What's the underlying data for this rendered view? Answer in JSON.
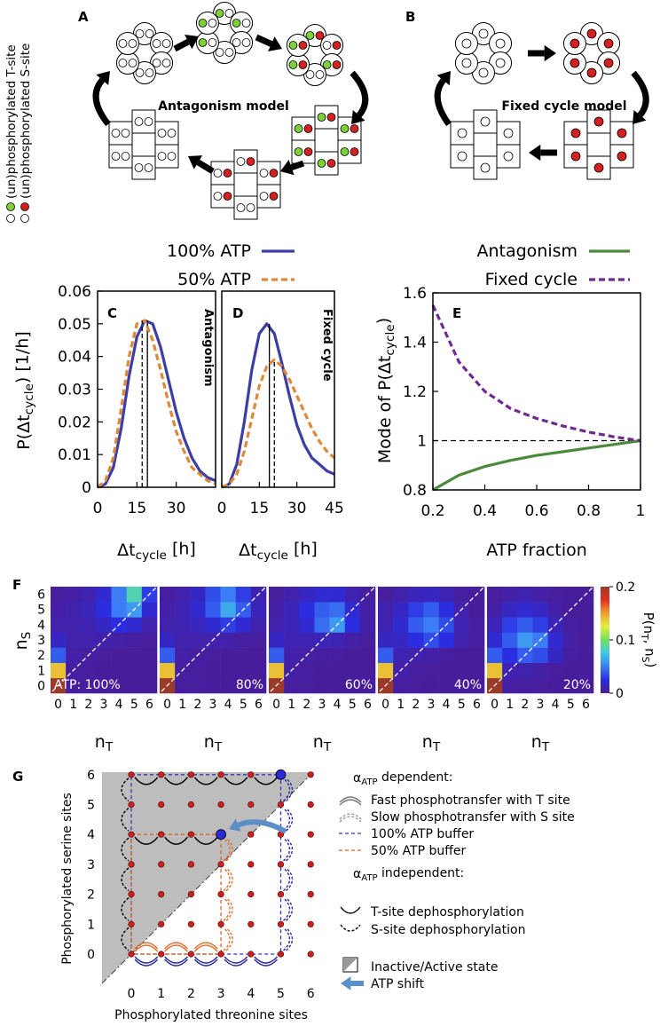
{
  "panel_a": {
    "label": "A",
    "title": "Antagonism model"
  },
  "panel_b": {
    "label": "B",
    "title": "Fixed cycle model"
  },
  "site_legend": [
    "(un)phosphorylated T-site",
    "(un)phosphorylated S-site"
  ],
  "chart_data": [
    {
      "type": "line",
      "panel": "C",
      "annotation": "Antagonism",
      "x": [
        0,
        3,
        6,
        9,
        12,
        15,
        18,
        21,
        24,
        27,
        30,
        33,
        36,
        39,
        42,
        45
      ],
      "xlim": [
        0,
        45
      ],
      "xticks": [
        0,
        15,
        30
      ],
      "ylim": [
        0,
        0.06
      ],
      "yticks": [
        0,
        0.01,
        0.02,
        0.03,
        0.04,
        0.05,
        0.06
      ],
      "x_label": [
        "Δt",
        "cycle",
        " [h]"
      ],
      "y_label": [
        "P(Δt",
        "cycle",
        ") [1/h]"
      ],
      "series": [
        {
          "name": "100% ATP",
          "color": "#3d3da6",
          "dash": false,
          "mode": 19,
          "values": [
            0,
            0.001,
            0.006,
            0.018,
            0.034,
            0.046,
            0.051,
            0.05,
            0.043,
            0.033,
            0.023,
            0.015,
            0.009,
            0.005,
            0.003,
            0.002
          ]
        },
        {
          "name": "50% ATP",
          "color": "#e0883a",
          "dash": true,
          "mode": 17,
          "values": [
            0,
            0.002,
            0.009,
            0.024,
            0.04,
            0.05,
            0.051,
            0.045,
            0.036,
            0.026,
            0.017,
            0.011,
            0.006,
            0.004,
            0.002,
            0.001
          ]
        }
      ]
    },
    {
      "type": "line",
      "panel": "D",
      "annotation": "Fixed cycle",
      "x": [
        0,
        3,
        6,
        9,
        12,
        15,
        18,
        21,
        24,
        27,
        30,
        33,
        36,
        39,
        42,
        45
      ],
      "xlim": [
        0,
        45
      ],
      "xticks": [
        0,
        15,
        30,
        45
      ],
      "ylim": [
        0,
        0.06
      ],
      "x_label": [
        "Δt",
        "cycle",
        " [h]"
      ],
      "series": [
        {
          "color": "#3d3da6",
          "dash": false,
          "mode": 19,
          "values": [
            0,
            0.001,
            0.007,
            0.02,
            0.036,
            0.047,
            0.05,
            0.047,
            0.038,
            0.028,
            0.019,
            0.013,
            0.009,
            0.007,
            0.005,
            0.004
          ]
        },
        {
          "color": "#e0883a",
          "dash": true,
          "mode": 21,
          "values": [
            0,
            0.001,
            0.004,
            0.011,
            0.021,
            0.031,
            0.037,
            0.039,
            0.037,
            0.033,
            0.028,
            0.023,
            0.018,
            0.014,
            0.011,
            0.009
          ]
        }
      ]
    },
    {
      "type": "line",
      "panel": "E",
      "x": [
        0.2,
        0.3,
        0.4,
        0.5,
        0.6,
        0.7,
        0.8,
        0.9,
        1
      ],
      "xlim": [
        0.2,
        1
      ],
      "xticks": [
        0.2,
        0.4,
        0.6,
        0.8,
        1
      ],
      "ylim": [
        0.8,
        1.6
      ],
      "yticks": [
        0.8,
        1,
        1.2,
        1.4,
        1.6
      ],
      "reference_line": 1,
      "x_label": "ATP fraction",
      "y_label": [
        "Mode of P(Δt",
        "cycle",
        ")"
      ],
      "series": [
        {
          "name": "Antagonism",
          "color": "#4a8a3a",
          "dash": false,
          "values": [
            0.8,
            0.86,
            0.895,
            0.92,
            0.94,
            0.955,
            0.97,
            0.985,
            1
          ]
        },
        {
          "name": "Fixed cycle",
          "color": "#6e2a8e",
          "dash": true,
          "values": [
            1.55,
            1.32,
            1.2,
            1.13,
            1.09,
            1.06,
            1.035,
            1.015,
            1
          ]
        }
      ]
    },
    {
      "type": "heatmap",
      "panel": "F",
      "xticks": [
        0,
        1,
        2,
        3,
        4,
        5,
        6
      ],
      "yticks": [
        0,
        1,
        2,
        3,
        4,
        5,
        6
      ],
      "x_label": [
        "n",
        "T"
      ],
      "y_label": [
        "n",
        "S"
      ],
      "colormap": [
        "#4b1c95",
        "#2a2ee0",
        "#3c7cf5",
        "#40c8e8",
        "#70e060",
        "#e0f040",
        "#f0a030",
        "#e03020",
        "#9a3a2a"
      ],
      "colorbar": {
        "lim": [
          0,
          0.2
        ],
        "ticks": [
          0,
          0.1,
          0.2
        ],
        "label": [
          "P(n",
          "T",
          ", n",
          "S",
          ")"
        ]
      },
      "panels": [
        {
          "label": "ATP: 100%",
          "values": [
            [
              0.2,
              0.004,
              0.003,
              0.002,
              0.002,
              0.002,
              0.002
            ],
            [
              0.14,
              0.004,
              0.003,
              0.002,
              0.002,
              0.002,
              0.002
            ],
            [
              0.04,
              0.006,
              0.004,
              0.003,
              0.002,
              0.002,
              0.002
            ],
            [
              0.015,
              0.008,
              0.008,
              0.007,
              0.005,
              0.004,
              0.003
            ],
            [
              0.008,
              0.008,
              0.01,
              0.015,
              0.025,
              0.02,
              0.008
            ],
            [
              0.006,
              0.008,
              0.012,
              0.025,
              0.05,
              0.06,
              0.02
            ],
            [
              0.004,
              0.006,
              0.01,
              0.02,
              0.05,
              0.085,
              0.03
            ]
          ]
        },
        {
          "label": "80%",
          "values": [
            [
              0.2,
              0.004,
              0.003,
              0.002,
              0.002,
              0.002,
              0.002
            ],
            [
              0.14,
              0.004,
              0.003,
              0.002,
              0.002,
              0.002,
              0.002
            ],
            [
              0.04,
              0.006,
              0.004,
              0.003,
              0.002,
              0.002,
              0.002
            ],
            [
              0.015,
              0.008,
              0.008,
              0.008,
              0.006,
              0.004,
              0.003
            ],
            [
              0.008,
              0.01,
              0.014,
              0.02,
              0.03,
              0.02,
              0.008
            ],
            [
              0.006,
              0.01,
              0.02,
              0.04,
              0.065,
              0.04,
              0.012
            ],
            [
              0.004,
              0.008,
              0.015,
              0.035,
              0.05,
              0.03,
              0.01
            ]
          ]
        },
        {
          "label": "60%",
          "values": [
            [
              0.2,
              0.004,
              0.003,
              0.002,
              0.002,
              0.002,
              0.002
            ],
            [
              0.14,
              0.005,
              0.003,
              0.002,
              0.002,
              0.002,
              0.002
            ],
            [
              0.04,
              0.007,
              0.005,
              0.004,
              0.003,
              0.002,
              0.002
            ],
            [
              0.015,
              0.01,
              0.01,
              0.012,
              0.01,
              0.005,
              0.003
            ],
            [
              0.008,
              0.012,
              0.02,
              0.045,
              0.06,
              0.025,
              0.006
            ],
            [
              0.006,
              0.012,
              0.025,
              0.04,
              0.045,
              0.02,
              0.005
            ],
            [
              0.004,
              0.008,
              0.015,
              0.02,
              0.02,
              0.01,
              0.003
            ]
          ]
        },
        {
          "label": "40%",
          "values": [
            [
              0.2,
              0.004,
              0.003,
              0.002,
              0.002,
              0.002,
              0.002
            ],
            [
              0.14,
              0.006,
              0.004,
              0.003,
              0.002,
              0.002,
              0.002
            ],
            [
              0.04,
              0.01,
              0.008,
              0.006,
              0.004,
              0.002,
              0.002
            ],
            [
              0.015,
              0.015,
              0.025,
              0.035,
              0.025,
              0.008,
              0.003
            ],
            [
              0.01,
              0.02,
              0.04,
              0.05,
              0.035,
              0.01,
              0.003
            ],
            [
              0.008,
              0.015,
              0.03,
              0.04,
              0.025,
              0.008,
              0.002
            ],
            [
              0.004,
              0.008,
              0.012,
              0.015,
              0.01,
              0.004,
              0.002
            ]
          ]
        },
        {
          "label": "20%",
          "values": [
            [
              0.2,
              0.005,
              0.004,
              0.003,
              0.002,
              0.002,
              0.002
            ],
            [
              0.14,
              0.01,
              0.008,
              0.005,
              0.003,
              0.002,
              0.002
            ],
            [
              0.04,
              0.025,
              0.04,
              0.035,
              0.015,
              0.004,
              0.002
            ],
            [
              0.02,
              0.04,
              0.06,
              0.05,
              0.02,
              0.005,
              0.002
            ],
            [
              0.012,
              0.03,
              0.04,
              0.03,
              0.012,
              0.004,
              0.002
            ],
            [
              0.006,
              0.015,
              0.02,
              0.015,
              0.006,
              0.002,
              0.002
            ],
            [
              0.003,
              0.006,
              0.008,
              0.006,
              0.003,
              0.002,
              0.002
            ]
          ]
        }
      ]
    }
  ],
  "panel_g": {
    "label": "G",
    "x_label": "Phosphorylated threonine sites",
    "y_label": "Phosphorylated serine sites",
    "xticks": [
      0,
      1,
      2,
      3,
      4,
      5,
      6
    ],
    "yticks": [
      0,
      1,
      2,
      3,
      4,
      5,
      6
    ],
    "dependent": [
      "α",
      "ATP",
      " dependent:"
    ],
    "independent": [
      "α",
      "ATP",
      " independent:"
    ],
    "items": [
      "Fast phosphotransfer with T site",
      "Slow phosphotransfer with S site",
      "100% ATP buffer",
      "50% ATP buffer",
      "T-site dephosphorylation",
      "S-site dephosphorylation",
      "Inactive/Active state",
      "ATP shift"
    ]
  }
}
